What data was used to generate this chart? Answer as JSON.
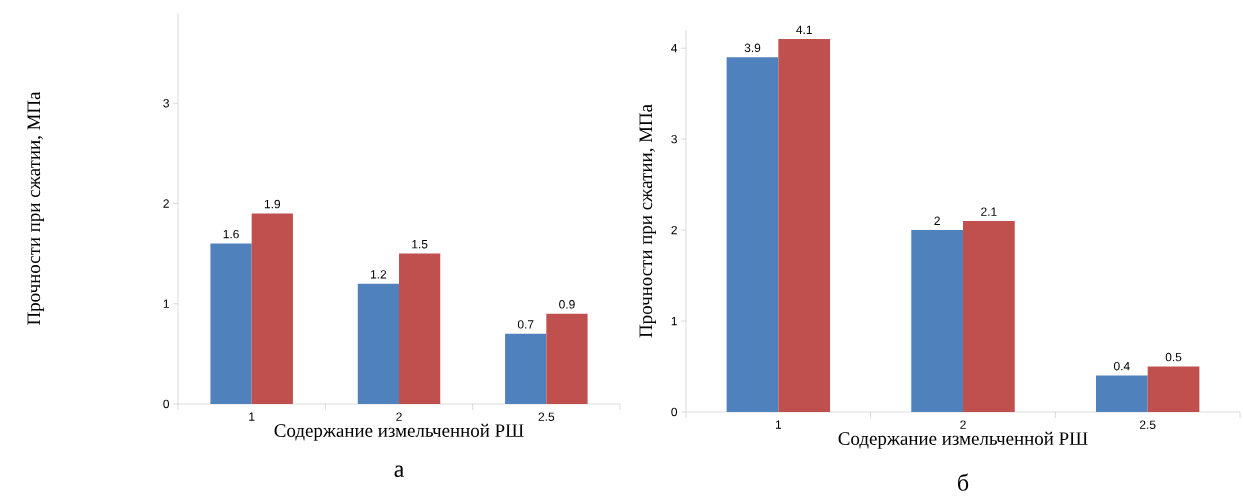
{
  "chart_data": [
    {
      "type": "bar",
      "categories": [
        "1",
        "2",
        "2.5"
      ],
      "xlabel": "Содержание измельченной РШ",
      "ylabel": "Прочности при сжатии, МПа",
      "annotations": [
        "а"
      ],
      "ylim": [
        0,
        3.9
      ],
      "yticks": [
        0,
        1,
        2,
        3
      ],
      "data_labels": true,
      "series": [
        {
          "color": "#4f81bd",
          "values": [
            1.6,
            1.2,
            0.7
          ]
        },
        {
          "color": "#c0504d",
          "values": [
            1.9,
            1.5,
            0.9
          ]
        }
      ]
    },
    {
      "type": "bar",
      "categories": [
        "1",
        "2",
        "2.5"
      ],
      "xlabel": "Содержание измельченной РШ",
      "ylabel": "Прочности при сжатии, МПа",
      "annotations": [
        "б"
      ],
      "ylim": [
        0,
        4.2
      ],
      "yticks": [
        0,
        1,
        2,
        3,
        4
      ],
      "data_labels": true,
      "series": [
        {
          "color": "#4f81bd",
          "values": [
            3.9,
            2,
            0.4
          ]
        },
        {
          "color": "#c0504d",
          "values": [
            4.1,
            2.1,
            0.5
          ]
        }
      ]
    }
  ]
}
